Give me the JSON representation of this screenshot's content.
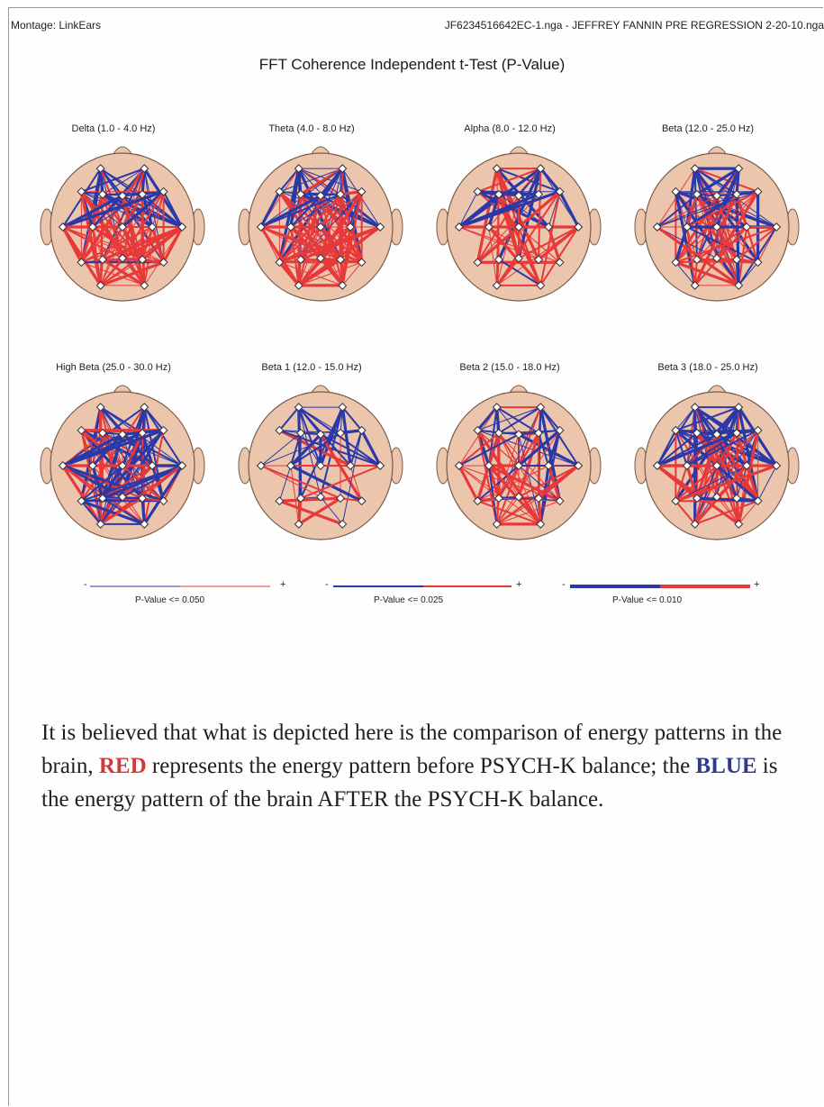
{
  "header": {
    "montage": "Montage:  LinkEars",
    "filename": "JF6234516642EC-1.nga - JEFFREY FANNIN PRE REGRESSION 2-20-10.nga"
  },
  "title": "FFT Coherence Independent t-Test  (P-Value)",
  "colors": {
    "red": "#e8393a",
    "blue": "#2b39a8",
    "head_fill": "#ecc6ac",
    "head_stroke": "#7a5a48"
  },
  "bands": [
    {
      "label": "Delta (1.0 - 4.0 Hz)",
      "pattern": "mostly-red-frontal-blue"
    },
    {
      "label": "Theta (4.0 - 8.0 Hz)",
      "pattern": "mostly-red-frontal-blue"
    },
    {
      "label": "Alpha (8.0 - 12.0 Hz)",
      "pattern": "red-with-frontal-blue"
    },
    {
      "label": "Beta (12.0 - 25.0 Hz)",
      "pattern": "blue-top-red-bottom"
    },
    {
      "label": "High Beta (25.0 - 30.0 Hz)",
      "pattern": "mixed-dense"
    },
    {
      "label": "Beta 1 (12.0 - 15.0 Hz)",
      "pattern": "blue-top-sparse-red"
    },
    {
      "label": "Beta 2 (15.0 - 18.0 Hz)",
      "pattern": "blue-top-red-bottom"
    },
    {
      "label": "Beta 3 (18.0 - 25.0 Hz)",
      "pattern": "blue-top-red-bottom"
    }
  ],
  "legend": [
    {
      "label": "P-Value <= 0.050",
      "minus": "-",
      "plus": "+"
    },
    {
      "label": "P-Value <= 0.025",
      "minus": "-",
      "plus": "+"
    },
    {
      "label": "P-Value <= 0.010",
      "minus": "-",
      "plus": "+"
    }
  ],
  "caption": {
    "part1": "It is believed that what is depicted here is the comparison of energy patterns in the brain, ",
    "red_word": "RED",
    "part2": " represents the energy pattern before PSYCH-K balance; the ",
    "blue_word": "BLUE",
    "part3": " is the energy pattern of the brain AFTER the PSYCH-K balance."
  }
}
